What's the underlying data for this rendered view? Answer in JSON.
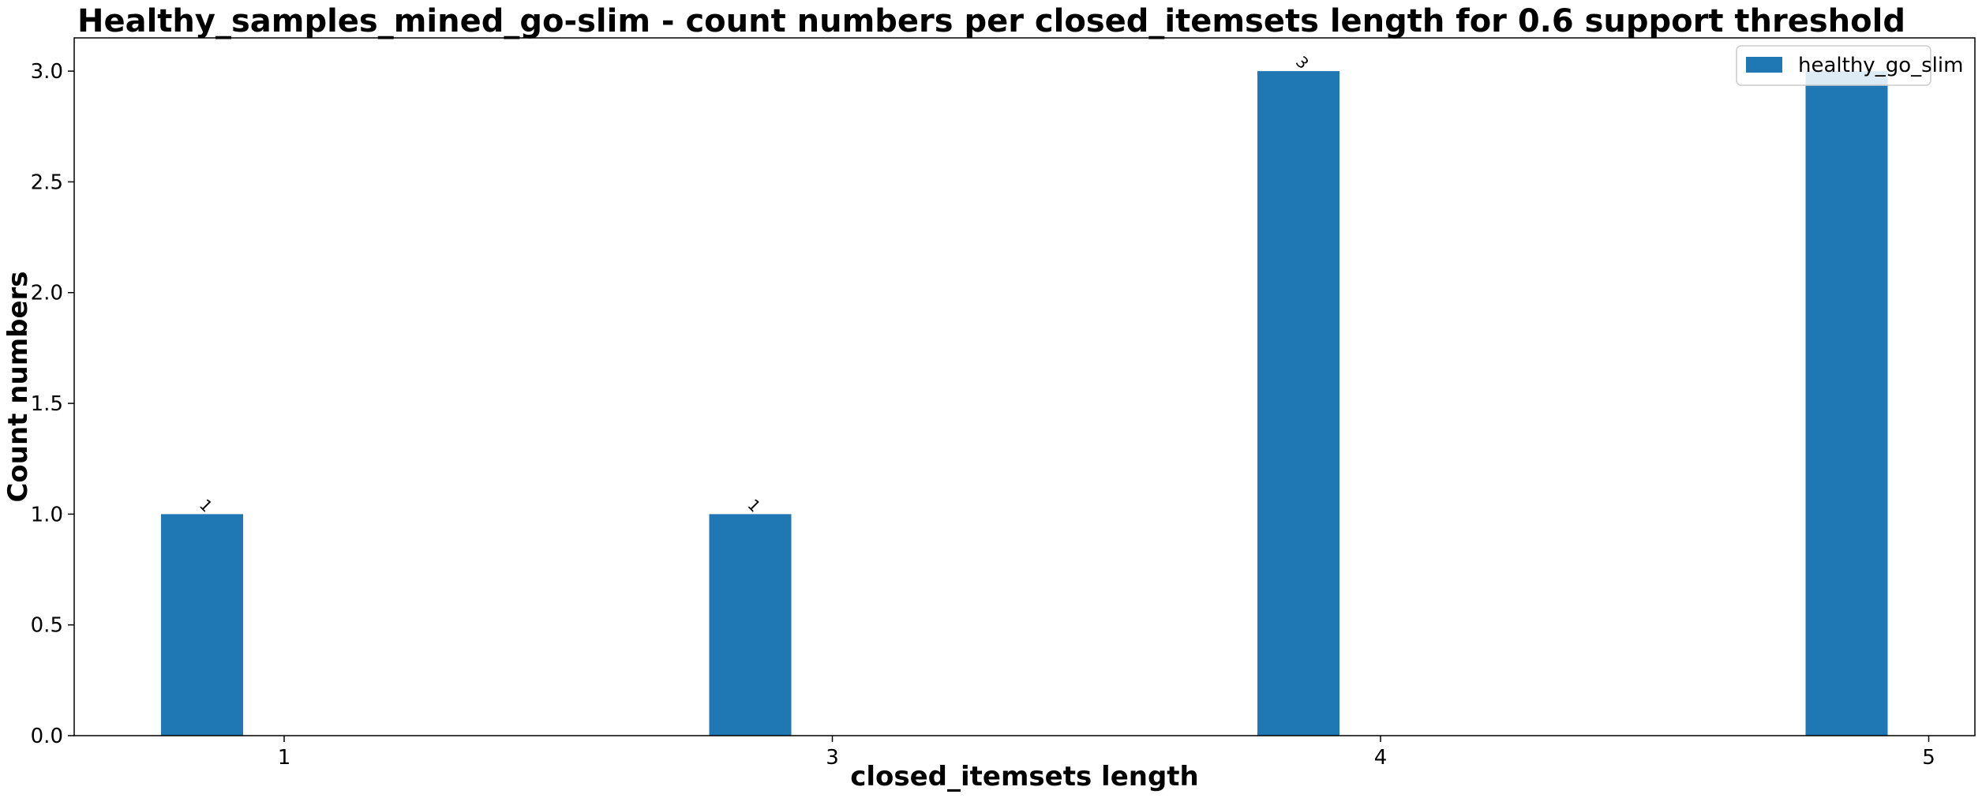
{
  "chart_data": {
    "type": "bar",
    "title": "Healthy_samples_mined_go-slim - count numbers per closed_itemsets length for 0.6 support threshold",
    "xlabel": "closed_itemsets length",
    "ylabel": "Count numbers",
    "categories": [
      "1",
      "3",
      "4",
      "5"
    ],
    "series": [
      {
        "name": "healthy_go_slim",
        "values": [
          1,
          1,
          3,
          3
        ],
        "color": "#1f77b4"
      }
    ],
    "data_labels": [
      "1",
      "1",
      "3",
      ""
    ],
    "ylim": [
      0,
      3.15
    ],
    "yticks": [
      "0.0",
      "0.5",
      "1.0",
      "1.5",
      "2.0",
      "2.5",
      "3.0"
    ],
    "legend_position": "top-right",
    "grid": false
  }
}
